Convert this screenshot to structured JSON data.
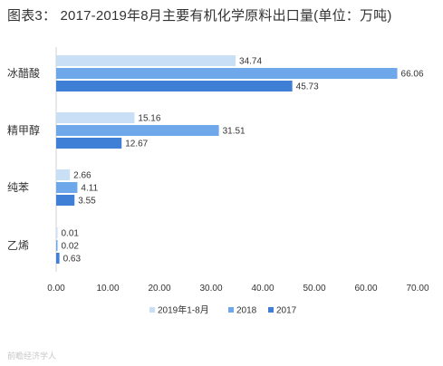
{
  "title": "图表3： 2017-2019年8月主要有机化学原料出口量(单位：万吨)",
  "source": "前瞻经济学人",
  "chart_data": {
    "type": "bar",
    "orientation": "horizontal",
    "title": "图表3： 2017-2019年8月主要有机化学原料出口量(单位：万吨)",
    "categories": [
      "冰醋酸",
      "精甲醇",
      "纯苯",
      "乙烯"
    ],
    "series": [
      {
        "name": "2019年1-8月",
        "color": "#c9dff5",
        "values": [
          34.74,
          15.16,
          2.66,
          0.01
        ]
      },
      {
        "name": "2018",
        "color": "#6fa8ea",
        "values": [
          66.06,
          31.51,
          4.11,
          0.02
        ]
      },
      {
        "name": "2017",
        "color": "#3f7fd6",
        "values": [
          45.73,
          12.67,
          3.55,
          0.63
        ]
      }
    ],
    "xlim": [
      0,
      70
    ],
    "xticks": [
      "0.00",
      "10.00",
      "20.00",
      "30.00",
      "40.00",
      "50.00",
      "60.00",
      "70.00"
    ],
    "grid": false,
    "legend_position": "bottom"
  }
}
